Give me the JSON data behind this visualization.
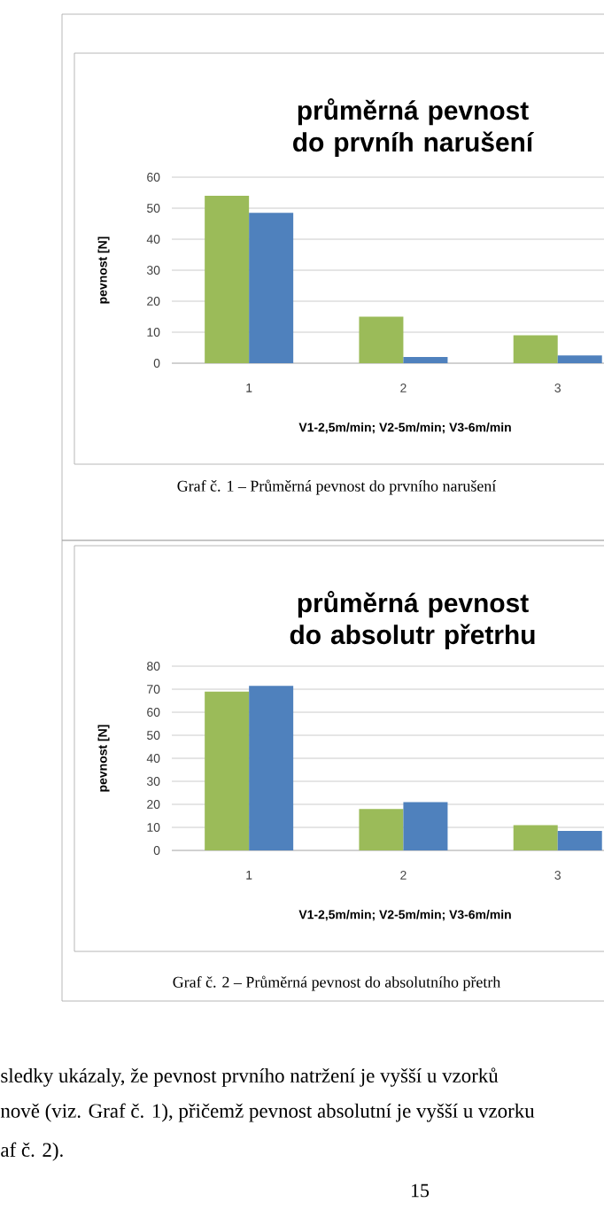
{
  "chart_data": [
    {
      "type": "bar",
      "title": "průměrná pevnost do prvníh narušení",
      "xlabel": "V1-2,5m/min;  V2-5m/min;  V3-6m/min",
      "ylabel": "pevnost [N]",
      "categories": [
        "1",
        "2",
        "3"
      ],
      "series": [
        {
          "color": "#9bbb59",
          "values": [
            54,
            15,
            9
          ]
        },
        {
          "color": "#4f81bd",
          "values": [
            48.5,
            2,
            2.5
          ]
        }
      ],
      "ylim": [
        0,
        60
      ],
      "yticks": [
        0,
        10,
        20,
        30,
        40,
        50,
        60
      ],
      "grid": "y",
      "annotations": [
        "Graf č. 1 – Průměrná pevnost do prvního narušení"
      ]
    },
    {
      "type": "bar",
      "title": "průměrná pevnost do absolutr přetrhu",
      "xlabel": "V1-2,5m/min;  V2-5m/min;  V3-6m/min",
      "ylabel": "pevnost [N]",
      "categories": [
        "1",
        "2",
        "3"
      ],
      "series": [
        {
          "color": "#9bbb59",
          "values": [
            69,
            18,
            11
          ]
        },
        {
          "color": "#4f81bd",
          "values": [
            71.5,
            21,
            8.5
          ]
        }
      ],
      "ylim": [
        0,
        80
      ],
      "yticks": [
        0,
        10,
        20,
        30,
        40,
        50,
        60,
        70,
        80
      ],
      "grid": "y",
      "annotations": [
        "Graf č. 2 – Průměrná pevnost do absolutního přetrh",
        "sledky ukázaly, že pevnost prvního natržení je vyšší u vzorků",
        "nově (viz. Graf č. 1), přičemž pevnost absolutní je vyšší u vzorku",
        "af č. 2).",
        "15"
      ]
    }
  ]
}
